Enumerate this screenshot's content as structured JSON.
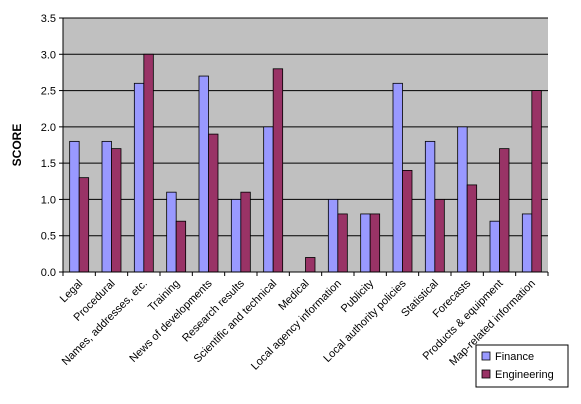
{
  "chart_data": {
    "type": "bar",
    "title": "",
    "xlabel": "",
    "ylabel": "SCORE",
    "ylim": [
      0,
      3.5
    ],
    "yticks": [
      "0.0",
      "0.5",
      "1.0",
      "1.5",
      "2.0",
      "2.5",
      "3.0",
      "3.5"
    ],
    "grid": true,
    "legend_position": "bottom-right",
    "categories": [
      "Legal",
      "Procedural",
      "Names, addresses, etc.",
      "Training",
      "News of developments",
      "Research results",
      "Scientific and technical",
      "Medical",
      "Local agency information",
      "Publicity",
      "Local authority policies",
      "Statistical",
      "Forecasts",
      "Products & equipment",
      "Map-related information"
    ],
    "series": [
      {
        "name": "Finance",
        "color": "#9999ff",
        "values": [
          1.8,
          1.8,
          2.6,
          1.1,
          2.7,
          1.0,
          2.0,
          0.0,
          1.0,
          0.8,
          2.6,
          1.8,
          2.0,
          0.7,
          0.8
        ]
      },
      {
        "name": "Engineering",
        "color": "#993366",
        "values": [
          1.3,
          1.7,
          3.0,
          0.7,
          1.9,
          1.1,
          2.8,
          0.2,
          0.8,
          0.8,
          1.4,
          1.0,
          1.2,
          1.7,
          2.5
        ]
      }
    ],
    "plot_background": "#c0c0c0"
  }
}
